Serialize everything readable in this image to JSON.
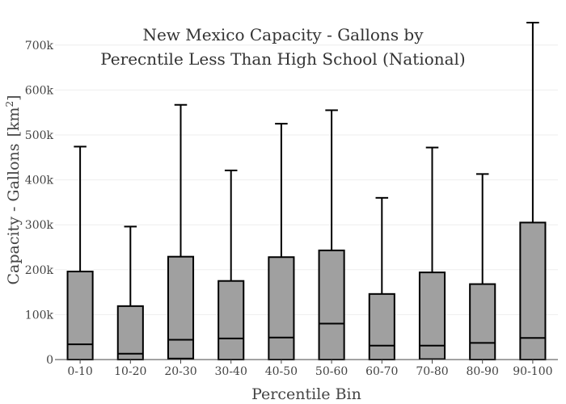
{
  "chart_data": {
    "type": "box",
    "title_lines": [
      "New Mexico Capacity - Gallons by",
      "Perecntile Less Than High School (National)"
    ],
    "xlabel": "Percentile Bin",
    "ylabel": "Capacity - Gallons",
    "ylabel_unit": "[km",
    "ylabel_unit_sup": "2",
    "ylabel_unit_close": "]",
    "ylim": [
      0,
      750000
    ],
    "yticks": [
      0,
      100000,
      200000,
      300000,
      400000,
      500000,
      600000,
      700000
    ],
    "ytick_labels": [
      "0",
      "100k",
      "200k",
      "300k",
      "400k",
      "500k",
      "600k",
      "700k"
    ],
    "grid": true,
    "box_color": "#a0a0a0",
    "categories": [
      "0-10",
      "10-20",
      "20-30",
      "30-40",
      "40-50",
      "50-60",
      "60-70",
      "70-80",
      "80-90",
      "90-100"
    ],
    "boxes": [
      {
        "min": 0,
        "q1": 0,
        "median": 34000,
        "q3": 196000,
        "max": 474000
      },
      {
        "min": 0,
        "q1": 0,
        "median": 13000,
        "q3": 119000,
        "max": 296000
      },
      {
        "min": 0,
        "q1": 2000,
        "median": 44000,
        "q3": 229000,
        "max": 567000
      },
      {
        "min": 0,
        "q1": 0,
        "median": 47000,
        "q3": 175000,
        "max": 421000
      },
      {
        "min": 0,
        "q1": 0,
        "median": 49000,
        "q3": 228000,
        "max": 525000
      },
      {
        "min": 0,
        "q1": 0,
        "median": 80000,
        "q3": 243000,
        "max": 555000
      },
      {
        "min": 0,
        "q1": 0,
        "median": 31000,
        "q3": 146000,
        "max": 360000
      },
      {
        "min": 0,
        "q1": 1000,
        "median": 31000,
        "q3": 194000,
        "max": 472000
      },
      {
        "min": 0,
        "q1": 0,
        "median": 37000,
        "q3": 168000,
        "max": 413000
      },
      {
        "min": 0,
        "q1": 0,
        "median": 48000,
        "q3": 305000,
        "max": 750000
      }
    ]
  }
}
